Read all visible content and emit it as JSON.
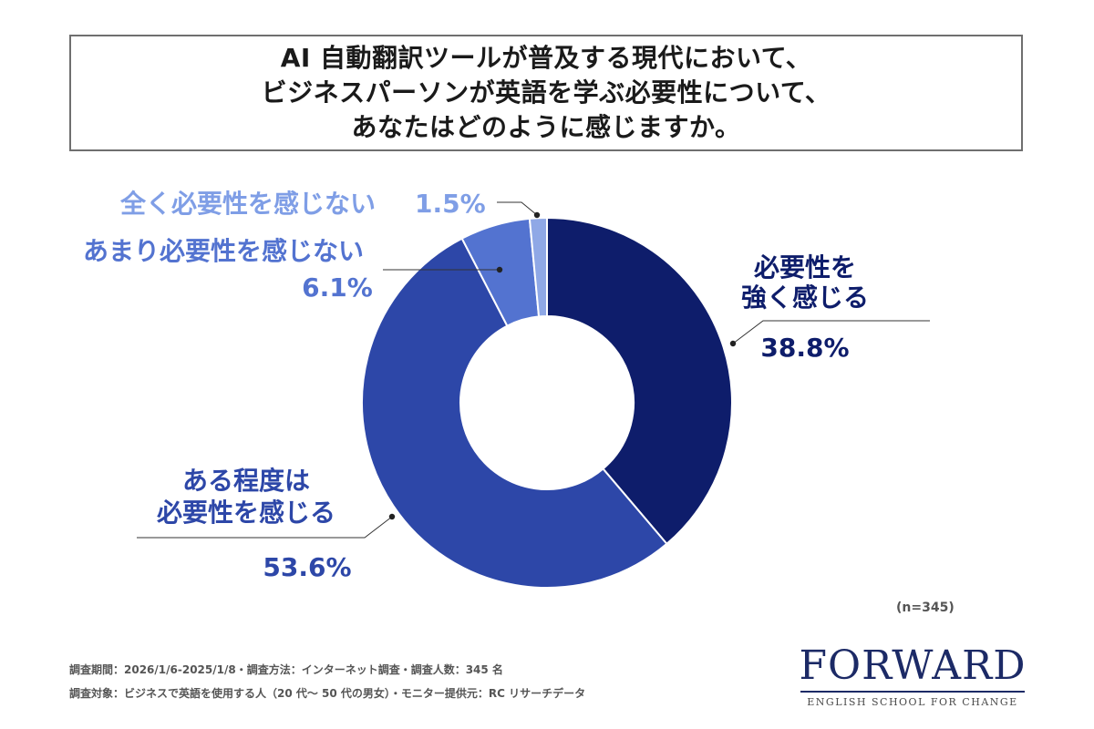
{
  "title": {
    "line1": "AI 自動翻訳ツールが普及する現代において、",
    "line2": "ビジネスパーソンが英語を学ぶ必要性について、",
    "line3": "あなたはどのように感じますか。"
  },
  "chart_data": {
    "type": "pie",
    "donut": true,
    "start": "top",
    "direction": "clockwise",
    "slices": [
      {
        "label_lines": [
          "必要性を",
          "強く感じる"
        ],
        "value": 38.8,
        "value_text": "38.8%",
        "color": "#0e1d6b",
        "label_color": "#0e1d6b"
      },
      {
        "label_lines": [
          "ある程度は",
          "必要性を感じる"
        ],
        "value": 53.6,
        "value_text": "53.6%",
        "color": "#2d47a8",
        "label_color": "#2d47a8"
      },
      {
        "label_lines": [
          "あまり必要性を感じない"
        ],
        "value": 6.1,
        "value_text": "6.1%",
        "color": "#5373d0",
        "label_color": "#5373d0"
      },
      {
        "label_lines": [
          "全く必要性を感じない"
        ],
        "value": 1.5,
        "value_text": "1.5%",
        "color": "#8fa8e6",
        "label_color": "#7f9ee6"
      }
    ]
  },
  "sample_size": "(n=345)",
  "notes": {
    "line1": "調査期間：2026/1/6-2025/1/8・調査方法：インターネット調査・調査人数：345 名",
    "line2": "調査対象：ビジネスで英語を使用する人（20 代～ 50 代の男女）・モニター提供元：RC リサーチデータ"
  },
  "logo": {
    "main": "FORWARD",
    "sub": "ENGLISH SCHOOL FOR CHANGE"
  }
}
